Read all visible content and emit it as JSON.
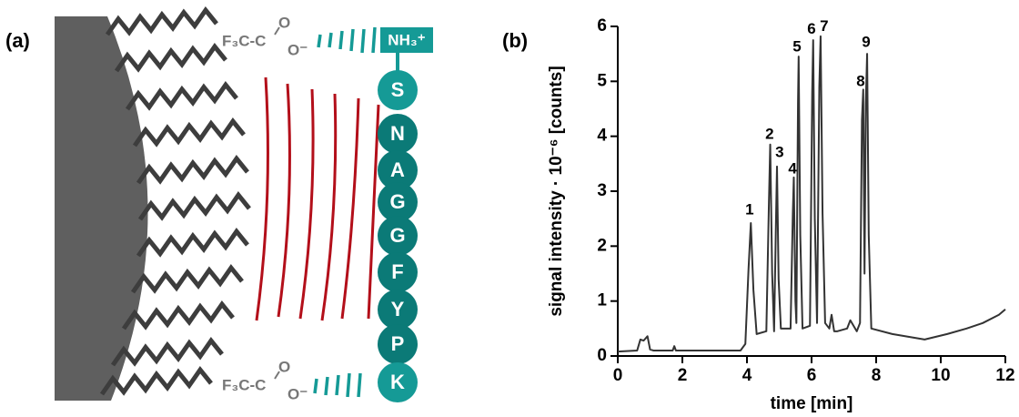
{
  "diagram": {
    "panel_label": "(a)",
    "amine": "NH₃⁺",
    "counterions": [
      {
        "acid": "F₃C-C",
        "o": "O",
        "o_minus": "O⁻"
      },
      {
        "acid": "F₃C-C",
        "o": "O",
        "o_minus": "O⁻"
      }
    ],
    "residues": [
      "S",
      "N",
      "A",
      "G",
      "G",
      "F",
      "Y",
      "P",
      "K"
    ]
  },
  "chart_data": {
    "type": "line",
    "panel_label": "(b)",
    "xlabel": "time [min]",
    "ylabel": "signal intensity · 10⁻⁶ [counts]",
    "color": "#333333",
    "x": [
      0,
      0.6,
      0.7,
      0.8,
      0.92,
      1.0,
      1.1,
      1.7,
      1.75,
      1.8,
      3.8,
      3.95,
      4.05,
      4.12,
      4.2,
      4.3,
      4.6,
      4.68,
      4.72,
      4.78,
      4.84,
      4.9,
      4.93,
      4.98,
      5.05,
      5.35,
      5.42,
      5.45,
      5.5,
      5.53,
      5.58,
      5.6,
      5.65,
      5.72,
      5.95,
      6.02,
      6.05,
      6.1,
      6.17,
      6.24,
      6.28,
      6.34,
      6.42,
      6.55,
      6.62,
      6.7,
      6.8,
      7.1,
      7.2,
      7.4,
      7.5,
      7.56,
      7.6,
      7.64,
      7.68,
      7.72,
      7.77,
      7.85,
      8.5,
      9.5,
      10.2,
      10.8,
      11.3,
      11.8,
      12
    ],
    "values": [
      0.08,
      0.1,
      0.3,
      0.28,
      0.36,
      0.12,
      0.1,
      0.1,
      0.18,
      0.1,
      0.1,
      0.22,
      1.6,
      2.42,
      1.2,
      0.4,
      0.45,
      2.8,
      3.85,
      1.5,
      0.45,
      2.5,
      3.45,
      1.4,
      0.5,
      0.5,
      2.6,
      3.25,
      1.0,
      0.6,
      4.6,
      5.45,
      2.2,
      0.5,
      0.55,
      4.8,
      5.75,
      2.5,
      0.6,
      4.9,
      5.82,
      2.6,
      0.6,
      0.5,
      0.75,
      0.45,
      0.45,
      0.5,
      0.65,
      0.45,
      0.6,
      4.3,
      4.85,
      1.5,
      4.6,
      5.5,
      2.2,
      0.5,
      0.4,
      0.3,
      0.4,
      0.5,
      0.6,
      0.75,
      0.85
    ],
    "annotations": [
      {
        "text": "1",
        "x": 4.08,
        "y": 2.65
      },
      {
        "text": "2",
        "x": 4.7,
        "y": 4.03
      },
      {
        "text": "3",
        "x": 5.01,
        "y": 3.7
      },
      {
        "text": "4",
        "x": 5.41,
        "y": 3.4
      },
      {
        "text": "5",
        "x": 5.55,
        "y": 5.62
      },
      {
        "text": "6",
        "x": 6.0,
        "y": 5.94
      },
      {
        "text": "7",
        "x": 6.39,
        "y": 5.99
      },
      {
        "text": "8",
        "x": 7.52,
        "y": 4.99
      },
      {
        "text": "9",
        "x": 7.69,
        "y": 5.7
      }
    ],
    "xlim": [
      0,
      12
    ],
    "xticks": [
      0,
      2,
      4,
      6,
      8,
      10,
      12
    ],
    "ylim": [
      0,
      6
    ],
    "yticks": [
      0,
      1,
      2,
      3,
      4,
      5,
      6
    ]
  }
}
